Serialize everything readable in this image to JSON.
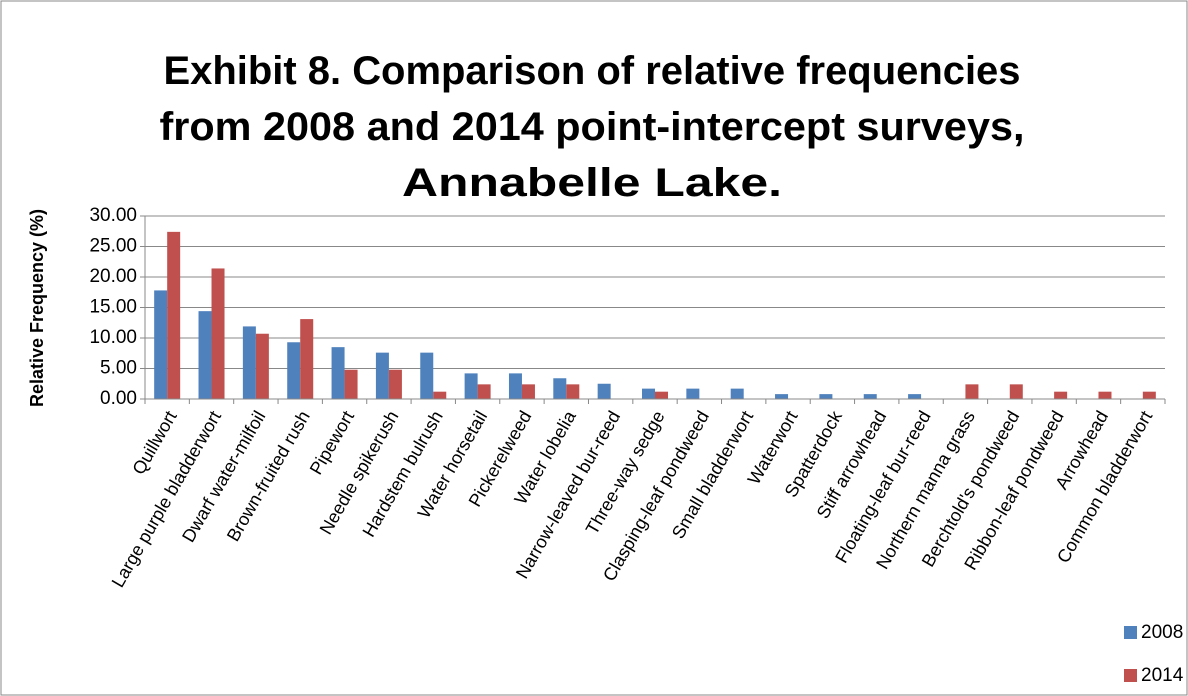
{
  "chart_data": {
    "type": "bar",
    "title": [
      "Exhibit 8. Comparison of relative frequencies",
      "from 2008 and 2014 point-intercept surveys,",
      "Annabelle Lake."
    ],
    "y_label": "Relative Frequency (%)",
    "categories": [
      "Quillwort",
      "Large purple bladderwort",
      "Dwarf water-milfoil",
      "Brown-fruited rush",
      "Pipewort",
      "Needle spikerush",
      "Hardstem bulrush",
      "Water horsetail",
      "Pickerelweed",
      "Water lobelia",
      "Narrow-leaved bur-reed",
      "Three-way sedge",
      "Clasping-leaf pondweed",
      "Small bladderwort",
      "Waterwort",
      "Spatterdock",
      "Stiff arrowhead",
      "Floating-leaf bur-reed",
      "Northern manna grass",
      "Berchtold's pondweed",
      "Ribbon-leaf pondweed",
      "Arrowhead",
      "Common bladderwort"
    ],
    "series": [
      {
        "name": "2008",
        "color": "#4f81bd",
        "values": [
          17.8,
          14.4,
          11.9,
          9.3,
          8.5,
          7.6,
          7.6,
          4.2,
          4.2,
          3.4,
          2.5,
          1.7,
          1.7,
          1.7,
          0.8,
          0.8,
          0.8,
          0.8,
          0,
          0,
          0,
          0,
          0
        ]
      },
      {
        "name": "2014",
        "color": "#c0504d",
        "values": [
          27.4,
          21.4,
          10.7,
          13.1,
          4.8,
          4.8,
          1.2,
          2.4,
          2.4,
          2.4,
          0,
          1.2,
          0,
          0,
          0,
          0,
          0,
          0,
          2.4,
          2.4,
          1.2,
          1.2,
          1.2
        ]
      }
    ],
    "ylim": [
      0,
      30
    ],
    "yticks": [
      {
        "value": 0,
        "label": "0.00"
      },
      {
        "value": 5,
        "label": "5.00"
      },
      {
        "value": 10,
        "label": "10.00"
      },
      {
        "value": 15,
        "label": "15.00"
      },
      {
        "value": 20,
        "label": "20.00"
      },
      {
        "value": 25,
        "label": "25.00"
      },
      {
        "value": 30,
        "label": "30.00"
      }
    ],
    "grid": true,
    "legend": "bottom-right"
  }
}
